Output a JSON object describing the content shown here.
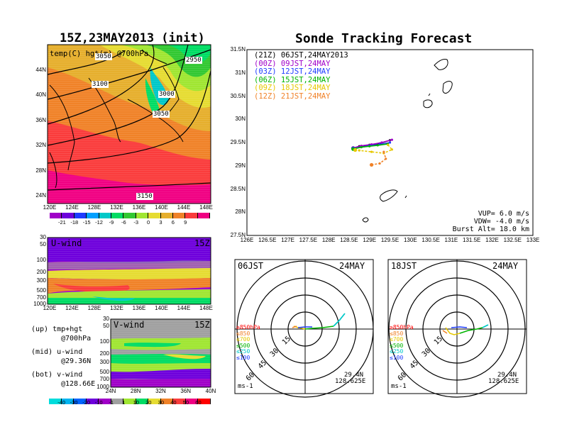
{
  "left_title": "15Z,23MAY2013 (init)",
  "right_title": "Sonde Tracking Forecast",
  "map700": {
    "label": "temp(C) hgt(m) @700hPa",
    "contours": [
      "3050",
      "2950",
      "3100",
      "3000",
      "3050",
      "3150"
    ],
    "lon_ticks": [
      "120E",
      "124E",
      "128E",
      "132E",
      "136E",
      "140E",
      "144E",
      "148E"
    ],
    "lat_ticks": [
      "44N",
      "40N",
      "36N",
      "32N",
      "28N",
      "24N"
    ],
    "colorbar": [
      "-21",
      "-18",
      "-15",
      "-12",
      "-9",
      "-6",
      "-3",
      "0",
      "3",
      "6",
      "9"
    ],
    "colors": [
      "#a000c8",
      "#6e00dc",
      "#1e3cff",
      "#00a0ff",
      "#00c8c8",
      "#00dc64",
      "#32c832",
      "#a0e632",
      "#e6dc32",
      "#e6af2d",
      "#f08228",
      "#fa3c3c",
      "#f00082"
    ]
  },
  "uwind": {
    "label": "U-wind",
    "time": "15Z",
    "p_ticks": [
      "30",
      "50",
      "100",
      "200",
      "300",
      "500",
      "700",
      "1000"
    ],
    "lon_ticks": [
      "120E",
      "124E",
      "128E",
      "132E",
      "136E",
      "140E",
      "144E",
      "148E"
    ]
  },
  "vwind": {
    "label": "V-wind",
    "time": "15Z",
    "p_ticks": [
      "30",
      "50",
      "100",
      "200",
      "300",
      "500",
      "700",
      "1000"
    ],
    "lat_ticks": [
      "24N",
      "28N",
      "32N",
      "36N",
      "40N"
    ],
    "colorbar": [
      "-40",
      "-30",
      "-20",
      "-10",
      "-1",
      "1",
      "10",
      "20",
      "30",
      "40",
      "50",
      "60"
    ],
    "colors": [
      "#00dcdc",
      "#00b4f0",
      "#0064ff",
      "#6e00dc",
      "#a000c8",
      "#a0a0a0",
      "#a0e632",
      "#00dc64",
      "#e6dc32",
      "#f08228",
      "#fa3c3c",
      "#f00082",
      "#ff0000"
    ]
  },
  "side_notes": [
    {
      "a": "(up)",
      "b": "tmp+hgt",
      "c": "@700hPa"
    },
    {
      "a": "(mid)",
      "b": "u-wind",
      "c": "@29.36N"
    },
    {
      "a": "(bot)",
      "b": "v-wind",
      "c": "@128.66E"
    }
  ],
  "track_map": {
    "legend": [
      {
        "label": "(21Z)  06JST,24MAY2013",
        "color": "#000000"
      },
      {
        "label": "(00Z)  09JST,24MAY",
        "color": "#a000c8"
      },
      {
        "label": "(03Z)  12JST,24MAY",
        "color": "#1e3cff"
      },
      {
        "label": "(06Z)  15JST,24MAY",
        "color": "#00b400"
      },
      {
        "label": "(09Z)  18JST,24MAY",
        "color": "#e6c800"
      },
      {
        "label": "(12Z)  21JST,24MAY",
        "color": "#f08228"
      }
    ],
    "lat_ticks": [
      "31.5N",
      "31N",
      "30.5N",
      "30N",
      "29.5N",
      "29N",
      "28.5N",
      "28N",
      "27.5N"
    ],
    "lon_ticks": [
      "126E",
      "126.5E",
      "127E",
      "127.5E",
      "128E",
      "128.5E",
      "129E",
      "129.5E",
      "130E",
      "130.5E",
      "131E",
      "131.5E",
      "132E",
      "132.5E",
      "133E"
    ],
    "params": [
      "VUP=  6.0  m/s",
      "VDW= -4.0  m/s",
      "Burst Alt=  18.0  km"
    ]
  },
  "hodo_left": {
    "time": "06JST",
    "date": "24MAY",
    "lat": "29.4N",
    "lon": "128.625E",
    "unit": "ms-1",
    "rings": [
      "15",
      "30",
      "45",
      "60"
    ]
  },
  "hodo_right": {
    "time": "18JST",
    "date": "24MAY",
    "lat": "29.4N",
    "lon": "128.625E",
    "unit": "ms-1",
    "rings": [
      "15",
      "30",
      "45",
      "60"
    ]
  },
  "hodo_levels": [
    {
      "label": "≥850hPa",
      "color": "#ff0000"
    },
    {
      "label": "≤850",
      "color": "#f08228"
    },
    {
      "label": "≤700",
      "color": "#e6c800"
    },
    {
      "label": "≤500",
      "color": "#00b400"
    },
    {
      "label": "≤250",
      "color": "#00c8c8"
    },
    {
      "label": "≤100",
      "color": "#1e3cff"
    }
  ],
  "chart_data": [
    {
      "type": "heatmap",
      "title": "15Z,23MAY2013 (init)",
      "field": "temp(C) hgt(m) @700hPa",
      "x_ticks": [
        "120E",
        "124E",
        "128E",
        "132E",
        "136E",
        "140E",
        "144E",
        "148E"
      ],
      "y_ticks": [
        "24N",
        "28N",
        "32N",
        "36N",
        "40N",
        "44N"
      ],
      "color_levels": [
        -21,
        -18,
        -15,
        -12,
        -9,
        -6,
        -3,
        0,
        3,
        6,
        9
      ],
      "contour_labels": [
        2950,
        3000,
        3050,
        3100,
        3150
      ]
    },
    {
      "type": "heatmap",
      "field": "U-wind",
      "x_ticks": [
        "120E",
        "124E",
        "128E",
        "132E",
        "136E",
        "140E",
        "144E",
        "148E"
      ],
      "y_ticks_hPa": [
        30,
        50,
        100,
        200,
        300,
        500,
        700,
        1000
      ]
    },
    {
      "type": "heatmap",
      "field": "V-wind",
      "x_ticks": [
        "24N",
        "28N",
        "32N",
        "36N",
        "40N"
      ],
      "y_ticks_hPa": [
        30,
        50,
        100,
        200,
        300,
        500,
        700,
        1000
      ],
      "color_levels": [
        -40,
        -30,
        -20,
        -10,
        -1,
        1,
        10,
        20,
        30,
        40,
        50,
        60
      ]
    },
    {
      "type": "line",
      "title": "Sonde Tracking Forecast",
      "xlim": [
        126,
        133
      ],
      "ylim": [
        27.5,
        31.5
      ],
      "series": [
        {
          "name": "(21Z)  06JST,24MAY2013",
          "x": [
            129.5,
            129.25,
            129.0,
            128.75,
            128.6
          ],
          "y": [
            29.55,
            29.48,
            29.45,
            29.42,
            29.38
          ]
        },
        {
          "name": "(00Z)  09JST,24MAY",
          "x": [
            129.55,
            129.3,
            129.05,
            128.8,
            128.6
          ],
          "y": [
            29.56,
            29.5,
            29.46,
            29.43,
            29.38
          ]
        },
        {
          "name": "(03Z)  12JST,24MAY",
          "x": [
            129.5,
            129.25,
            129.0,
            128.8,
            128.6
          ],
          "y": [
            29.5,
            29.46,
            29.43,
            29.4,
            29.37
          ]
        },
        {
          "name": "(06Z)  15JST,24MAY",
          "x": [
            129.45,
            129.2,
            129.0,
            128.8,
            128.6
          ],
          "y": [
            29.47,
            29.44,
            29.42,
            29.4,
            29.36
          ]
        },
        {
          "name": "(09Z)  18JST,24MAY",
          "x": [
            129.45,
            129.55,
            129.35,
            129.05,
            128.75,
            128.65
          ],
          "y": [
            29.45,
            29.35,
            29.27,
            29.3,
            29.33,
            29.34
          ]
        },
        {
          "name": "(12Z)  21JST,24MAY",
          "x": [
            129.35,
            129.4,
            129.25,
            129.05
          ],
          "y": [
            29.3,
            29.15,
            29.05,
            29.02
          ]
        }
      ]
    }
  ]
}
